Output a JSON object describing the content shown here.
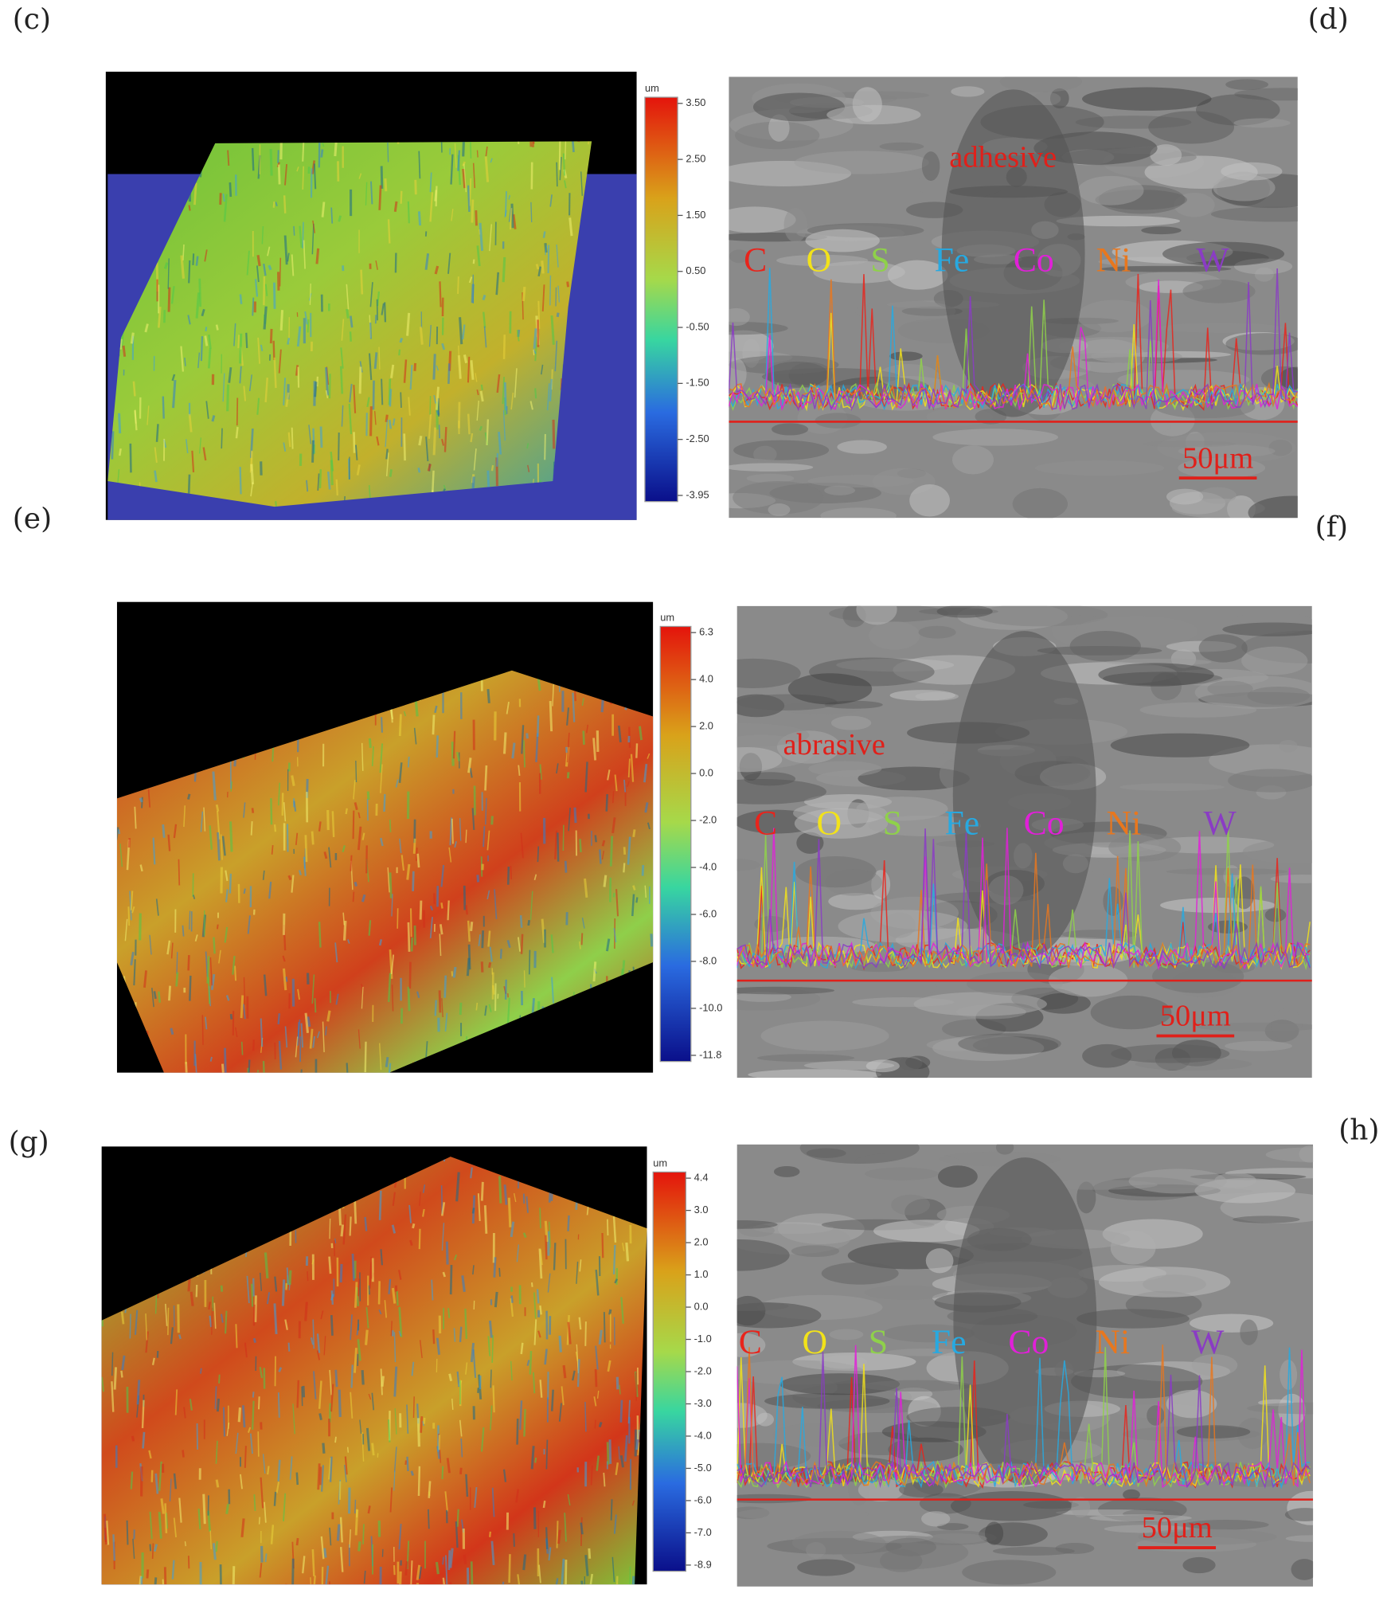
{
  "panels": [
    {
      "label": "(c)",
      "kind": "topography",
      "colorbar": {
        "unit": "um",
        "ticks": [
          "3.50",
          "2.50",
          "1.50",
          "0.50",
          "-0.50",
          "-1.50",
          "-2.50",
          "-3.95"
        ]
      }
    },
    {
      "label": "(d)",
      "kind": "sem",
      "annotation": "adhesive",
      "scale_bar": "50μm",
      "elements": [
        {
          "symbol": "C",
          "color": "#e8241c"
        },
        {
          "symbol": "O",
          "color": "#f2e21a"
        },
        {
          "symbol": "S",
          "color": "#8fd14a"
        },
        {
          "symbol": "Fe",
          "color": "#27a9e1"
        },
        {
          "symbol": "Co",
          "color": "#e020d8"
        },
        {
          "symbol": "Ni",
          "color": "#e8771e"
        },
        {
          "symbol": "W",
          "color": "#8a3cc4"
        }
      ]
    },
    {
      "label": "(e)",
      "kind": "topography",
      "colorbar": {
        "unit": "um",
        "ticks": [
          "6.3",
          "4.0",
          "2.0",
          "0.0",
          "-2.0",
          "-4.0",
          "-6.0",
          "-8.0",
          "-10.0",
          "-11.8"
        ]
      }
    },
    {
      "label": "(f)",
      "kind": "sem",
      "annotation": "abrasive",
      "scale_bar": "50μm",
      "elements": [
        {
          "symbol": "C",
          "color": "#e8241c"
        },
        {
          "symbol": "O",
          "color": "#f2e21a"
        },
        {
          "symbol": "S",
          "color": "#8fd14a"
        },
        {
          "symbol": "Fe",
          "color": "#27a9e1"
        },
        {
          "symbol": "Co",
          "color": "#e020d8"
        },
        {
          "symbol": "Ni",
          "color": "#e8771e"
        },
        {
          "symbol": "W",
          "color": "#8a3cc4"
        }
      ]
    },
    {
      "label": "(g)",
      "kind": "topography",
      "colorbar": {
        "unit": "um",
        "ticks": [
          "4.4",
          "3.0",
          "2.0",
          "1.0",
          "0.0",
          "-1.0",
          "-2.0",
          "-3.0",
          "-4.0",
          "-5.0",
          "-6.0",
          "-7.0",
          "-8.9"
        ]
      }
    },
    {
      "label": "(h)",
      "kind": "sem",
      "scale_bar": "50μm",
      "elements": [
        {
          "symbol": "C",
          "color": "#e8241c"
        },
        {
          "symbol": "O",
          "color": "#f2e21a"
        },
        {
          "symbol": "S",
          "color": "#8fd14a"
        },
        {
          "symbol": "Fe",
          "color": "#27a9e1"
        },
        {
          "symbol": "Co",
          "color": "#e020d8"
        },
        {
          "symbol": "Ni",
          "color": "#e8771e"
        },
        {
          "symbol": "W",
          "color": "#8a3cc4"
        }
      ]
    }
  ]
}
